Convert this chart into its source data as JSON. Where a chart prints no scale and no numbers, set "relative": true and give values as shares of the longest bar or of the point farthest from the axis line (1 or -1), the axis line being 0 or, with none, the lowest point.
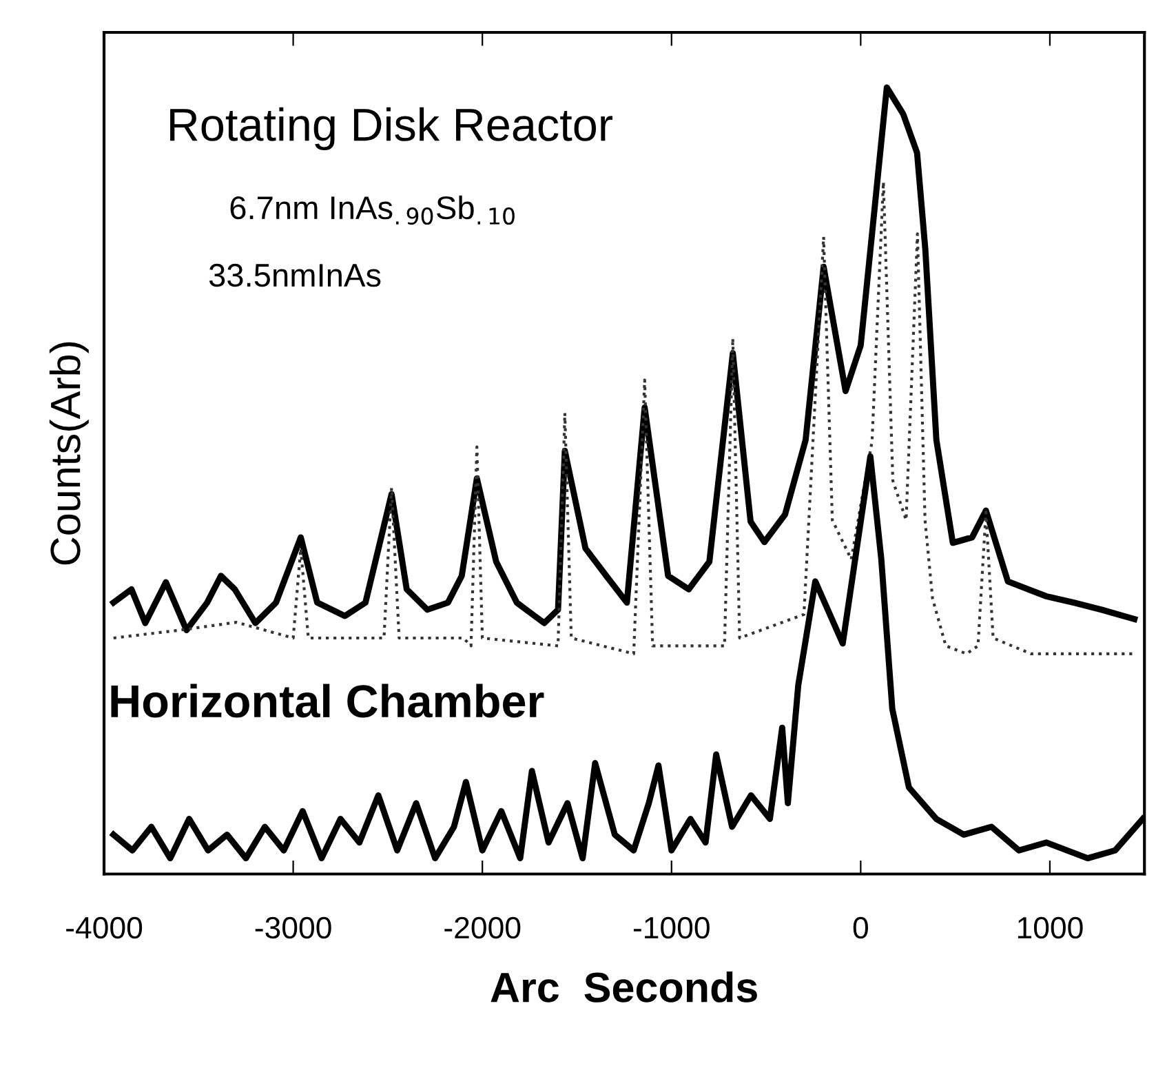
{
  "chart_data": {
    "type": "line",
    "xlabel": "Arc  Seconds",
    "ylabel": "Counts(Arb)",
    "relative": true,
    "xlim": [
      -4000,
      1500
    ],
    "xticks": [
      -4000,
      -3000,
      -2000,
      -1000,
      0,
      1000
    ],
    "grid": false,
    "marker": "none",
    "annotations": [
      "Rotating Disk Reactor",
      "6.7nm InAs$_{.90}$Sb$_{.10}$",
      "33.5nmInAs"
    ],
    "series": [
      {
        "color": "#000000",
        "line_style": "solid",
        "x": [
          -3950,
          -3855,
          -3782,
          -3673,
          -3564,
          -3455,
          -3382,
          -3309,
          -3200,
          -3091,
          -2960,
          -2873,
          -2727,
          -2618,
          -2480,
          -2400,
          -2291,
          -2182,
          -2109,
          -2029,
          -1927,
          -1818,
          -1673,
          -1600,
          -1564,
          -1455,
          -1345,
          -1236,
          -1142,
          -1018,
          -909,
          -800,
          -676,
          -582,
          -509,
          -400,
          -291,
          -196,
          -80,
          0,
          73,
          138,
          225,
          298,
          342,
          400,
          487,
          589,
          662,
          778,
          982,
          1127,
          1273,
          1447
        ],
        "values": [
          0.345,
          0.362,
          0.319,
          0.371,
          0.31,
          0.345,
          0.379,
          0.362,
          0.319,
          0.345,
          0.428,
          0.345,
          0.328,
          0.345,
          0.483,
          0.362,
          0.336,
          0.345,
          0.379,
          0.503,
          0.397,
          0.345,
          0.319,
          0.336,
          0.538,
          0.414,
          0.379,
          0.345,
          0.593,
          0.379,
          0.362,
          0.397,
          0.662,
          0.448,
          0.422,
          0.457,
          0.552,
          0.772,
          0.614,
          0.672,
          0.845,
          1.0,
          0.966,
          0.917,
          0.793,
          0.552,
          0.421,
          0.428,
          0.462,
          0.372,
          0.353,
          0.345,
          0.336,
          0.324
        ]
      },
      {
        "color": "#333333",
        "line_style": "dotted",
        "x": [
          -3950,
          -3600,
          -3300,
          -3000,
          -2960,
          -2920,
          -2600,
          -2520,
          -2480,
          -2440,
          -2100,
          -2060,
          -2029,
          -2000,
          -1600,
          -1564,
          -1530,
          -1200,
          -1142,
          -1100,
          -720,
          -676,
          -640,
          -300,
          -196,
          -150,
          -50,
          60,
          120,
          170,
          240,
          300,
          340,
          380,
          450,
          560,
          620,
          662,
          700,
          900,
          1447
        ],
        "values": [
          0.3,
          0.31,
          0.32,
          0.3,
          0.414,
          0.3,
          0.3,
          0.3,
          0.491,
          0.3,
          0.3,
          0.29,
          0.543,
          0.3,
          0.29,
          0.586,
          0.3,
          0.28,
          0.628,
          0.29,
          0.29,
          0.681,
          0.3,
          0.33,
          0.81,
          0.45,
          0.4,
          0.55,
          0.88,
          0.5,
          0.45,
          0.814,
          0.45,
          0.35,
          0.29,
          0.28,
          0.29,
          0.46,
          0.3,
          0.28,
          0.28
        ]
      },
      {
        "name": "Horizontal Chamber",
        "color": "#000000",
        "line_style": "solid",
        "x": [
          -3950,
          -3850,
          -3750,
          -3650,
          -3550,
          -3450,
          -3350,
          -3250,
          -3150,
          -3050,
          -2950,
          -2850,
          -2750,
          -2650,
          -2550,
          -2450,
          -2350,
          -2250,
          -2150,
          -2087,
          -2000,
          -1900,
          -1800,
          -1738,
          -1650,
          -1550,
          -1470,
          -1404,
          -1300,
          -1200,
          -1120,
          -1069,
          -1000,
          -900,
          -820,
          -764,
          -680,
          -580,
          -480,
          -415,
          -385,
          -330,
          -240,
          -95,
          51,
          109,
          167,
          255,
          400,
          545,
          691,
          836,
          982,
          1200,
          1345,
          1491
        ],
        "values": [
          0.05,
          0.03,
          0.06,
          0.02,
          0.07,
          0.03,
          0.05,
          0.02,
          0.06,
          0.03,
          0.08,
          0.02,
          0.07,
          0.04,
          0.1,
          0.03,
          0.09,
          0.02,
          0.06,
          0.117,
          0.03,
          0.08,
          0.02,
          0.131,
          0.04,
          0.09,
          0.02,
          0.141,
          0.05,
          0.03,
          0.09,
          0.138,
          0.03,
          0.07,
          0.04,
          0.152,
          0.06,
          0.1,
          0.07,
          0.186,
          0.09,
          0.24,
          0.372,
          0.293,
          0.531,
          0.4,
          0.21,
          0.11,
          0.07,
          0.05,
          0.06,
          0.03,
          0.04,
          0.02,
          0.03,
          0.07
        ]
      }
    ]
  }
}
